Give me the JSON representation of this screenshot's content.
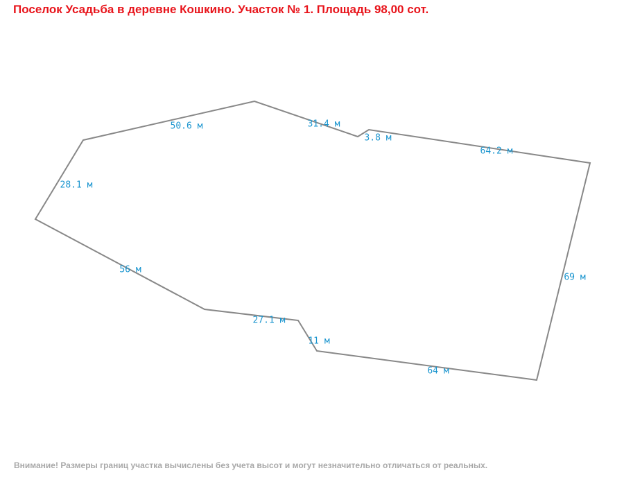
{
  "header": {
    "title": "Поселок Усадьба в деревне Кошкино. Участок № 1. Площадь 98,00 сот."
  },
  "edges": [
    {
      "label": "50.6 м"
    },
    {
      "label": "31.4 м"
    },
    {
      "label": "3.8 м"
    },
    {
      "label": "64.2 м"
    },
    {
      "label": "69 м"
    },
    {
      "label": "64 м"
    },
    {
      "label": "11 м"
    },
    {
      "label": "27.1 м"
    },
    {
      "label": "56 м"
    },
    {
      "label": "28.1 м"
    }
  ],
  "footer": {
    "note": "Внимание! Размеры границ участка вычислены без учета высот и могут незначительно отличаться от реальных."
  }
}
